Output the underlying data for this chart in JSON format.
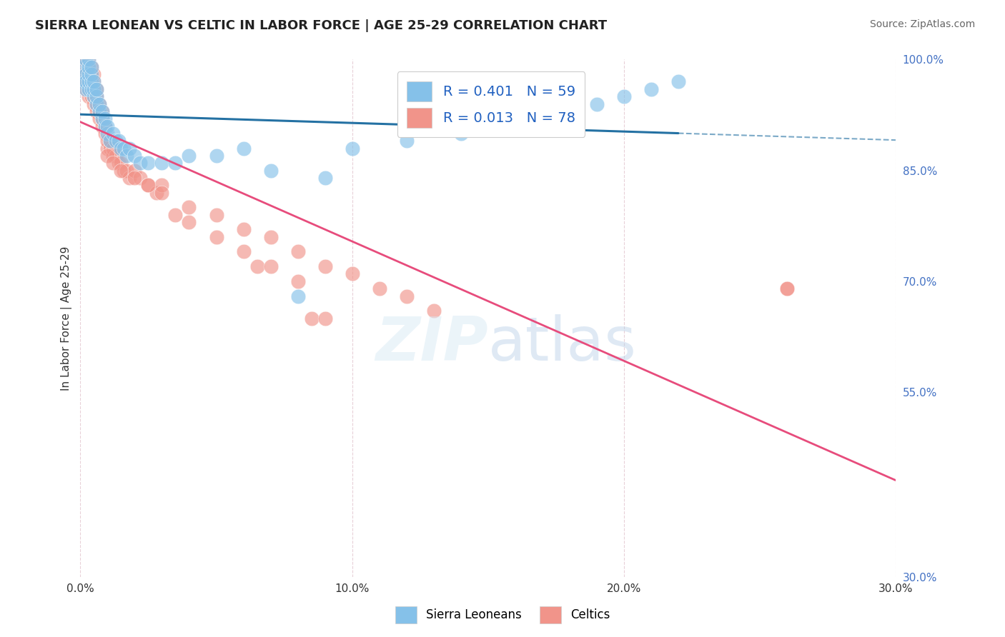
{
  "title": "SIERRA LEONEAN VS CELTIC IN LABOR FORCE | AGE 25-29 CORRELATION CHART",
  "source": "Source: ZipAtlas.com",
  "ylabel": "In Labor Force | Age 25-29",
  "xlim": [
    0.0,
    0.3
  ],
  "ylim": [
    0.3,
    1.0
  ],
  "xticks": [
    0.0,
    0.1,
    0.2,
    0.3
  ],
  "xticklabels": [
    "0.0%",
    "10.0%",
    "20.0%",
    "30.0%"
  ],
  "yticks": [
    1.0,
    0.85,
    0.7,
    0.55,
    0.3
  ],
  "yticklabels": [
    "100.0%",
    "85.0%",
    "70.0%",
    "55.0%",
    "30.0%"
  ],
  "sierra_color": "#85C1E9",
  "celtic_color": "#F1948A",
  "sierra_edge": "#85C1E9",
  "celtic_edge": "#F1948A",
  "sierra_line_color": "#2471A3",
  "celtic_line_color": "#E74C7C",
  "R_sierra": 0.401,
  "N_sierra": 59,
  "R_celtic": 0.013,
  "N_celtic": 78,
  "background": "#FFFFFF",
  "grid_color": "#E8D0D8",
  "sierra_x": [
    0.001,
    0.001,
    0.002,
    0.002,
    0.002,
    0.002,
    0.003,
    0.003,
    0.003,
    0.003,
    0.003,
    0.004,
    0.004,
    0.004,
    0.004,
    0.005,
    0.005,
    0.005,
    0.006,
    0.006,
    0.006,
    0.007,
    0.007,
    0.008,
    0.008,
    0.009,
    0.009,
    0.01,
    0.01,
    0.011,
    0.012,
    0.013,
    0.014,
    0.015,
    0.016,
    0.017,
    0.018,
    0.02,
    0.022,
    0.025,
    0.03,
    0.035,
    0.04,
    0.05,
    0.06,
    0.07,
    0.08,
    0.09,
    0.1,
    0.12,
    0.14,
    0.15,
    0.16,
    0.17,
    0.18,
    0.19,
    0.2,
    0.21,
    0.22
  ],
  "sierra_y": [
    0.97,
    0.99,
    0.96,
    0.98,
    1.0,
    0.97,
    0.96,
    0.97,
    0.98,
    0.99,
    1.0,
    0.96,
    0.97,
    0.98,
    0.99,
    0.95,
    0.96,
    0.97,
    0.94,
    0.95,
    0.96,
    0.93,
    0.94,
    0.92,
    0.93,
    0.91,
    0.92,
    0.9,
    0.91,
    0.89,
    0.9,
    0.89,
    0.89,
    0.88,
    0.88,
    0.87,
    0.88,
    0.87,
    0.86,
    0.86,
    0.86,
    0.86,
    0.87,
    0.87,
    0.88,
    0.85,
    0.68,
    0.84,
    0.88,
    0.89,
    0.9,
    0.91,
    0.92,
    0.93,
    0.93,
    0.94,
    0.95,
    0.96,
    0.97
  ],
  "celtic_x": [
    0.001,
    0.001,
    0.001,
    0.002,
    0.002,
    0.002,
    0.002,
    0.003,
    0.003,
    0.003,
    0.003,
    0.003,
    0.004,
    0.004,
    0.004,
    0.004,
    0.004,
    0.005,
    0.005,
    0.005,
    0.005,
    0.005,
    0.006,
    0.006,
    0.006,
    0.006,
    0.007,
    0.007,
    0.007,
    0.008,
    0.008,
    0.008,
    0.009,
    0.009,
    0.01,
    0.01,
    0.011,
    0.011,
    0.012,
    0.012,
    0.013,
    0.014,
    0.015,
    0.016,
    0.017,
    0.018,
    0.02,
    0.022,
    0.025,
    0.028,
    0.03,
    0.035,
    0.04,
    0.05,
    0.06,
    0.065,
    0.07,
    0.08,
    0.085,
    0.09,
    0.01,
    0.012,
    0.015,
    0.02,
    0.025,
    0.03,
    0.04,
    0.05,
    0.06,
    0.07,
    0.08,
    0.09,
    0.1,
    0.11,
    0.12,
    0.13,
    0.26,
    0.26
  ],
  "celtic_y": [
    0.97,
    0.98,
    1.0,
    0.96,
    0.97,
    0.98,
    1.0,
    0.95,
    0.96,
    0.97,
    0.98,
    1.0,
    0.95,
    0.96,
    0.97,
    0.98,
    0.99,
    0.94,
    0.95,
    0.96,
    0.97,
    0.98,
    0.93,
    0.94,
    0.95,
    0.96,
    0.92,
    0.93,
    0.94,
    0.91,
    0.92,
    0.93,
    0.9,
    0.91,
    0.88,
    0.89,
    0.88,
    0.89,
    0.87,
    0.88,
    0.87,
    0.86,
    0.86,
    0.85,
    0.85,
    0.84,
    0.85,
    0.84,
    0.83,
    0.82,
    0.83,
    0.79,
    0.78,
    0.76,
    0.74,
    0.72,
    0.72,
    0.7,
    0.65,
    0.65,
    0.87,
    0.86,
    0.85,
    0.84,
    0.83,
    0.82,
    0.8,
    0.79,
    0.77,
    0.76,
    0.74,
    0.72,
    0.71,
    0.69,
    0.68,
    0.66,
    0.69,
    0.69
  ]
}
